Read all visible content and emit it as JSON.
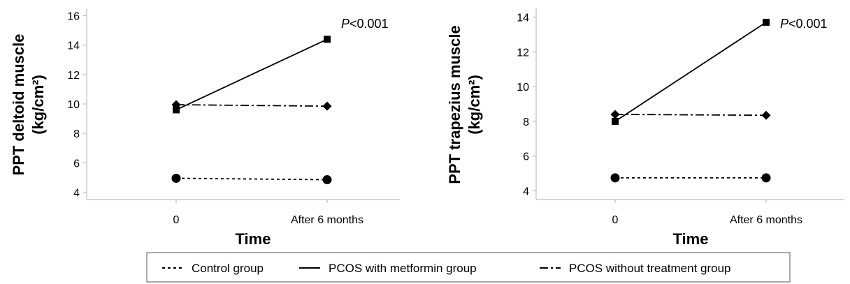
{
  "chart_data": [
    {
      "type": "line",
      "categories": [
        "0",
        "After 6 months"
      ],
      "xlabel": "Time",
      "ylabel": "PPT deltoid muscle",
      "ylabel_unit": "(kg/cm²)",
      "ylim": [
        3.5,
        16.5
      ],
      "yticks": [
        "4",
        "6",
        "8",
        "10",
        "12",
        "14",
        "16"
      ],
      "annotation": "P<0.001",
      "series": [
        {
          "name": "Control group",
          "values": [
            4.95,
            4.85
          ],
          "marker": "circle",
          "dash": "dotted"
        },
        {
          "name": "PCOS with metformin group",
          "values": [
            9.6,
            14.4
          ],
          "marker": "square",
          "dash": "solid"
        },
        {
          "name": "PCOS without treatment group",
          "values": [
            9.95,
            9.85
          ],
          "marker": "diamond",
          "dash": "dashdot"
        }
      ]
    },
    {
      "type": "line",
      "categories": [
        "0",
        "After 6 months"
      ],
      "xlabel": "Time",
      "ylabel": "PPT trapezius muscle",
      "ylabel_unit": "(kg/cm²)",
      "ylim": [
        3.5,
        14.5
      ],
      "yticks": [
        "4",
        "6",
        "8",
        "10",
        "12",
        "14"
      ],
      "annotation": "P<0.001",
      "series": [
        {
          "name": "Control group",
          "values": [
            4.75,
            4.75
          ],
          "marker": "circle",
          "dash": "dotted"
        },
        {
          "name": "PCOS with metformin group",
          "values": [
            8.0,
            13.7
          ],
          "marker": "square",
          "dash": "solid"
        },
        {
          "name": "PCOS without treatment group",
          "values": [
            8.4,
            8.35
          ],
          "marker": "diamond",
          "dash": "dashdot"
        }
      ]
    }
  ],
  "legend": {
    "position": "bottom-center",
    "items": [
      {
        "label": "Control group",
        "dash": "dotted"
      },
      {
        "label": "PCOS with metformin group",
        "dash": "solid"
      },
      {
        "label": "PCOS without treatment group",
        "dash": "dashdot"
      }
    ]
  }
}
